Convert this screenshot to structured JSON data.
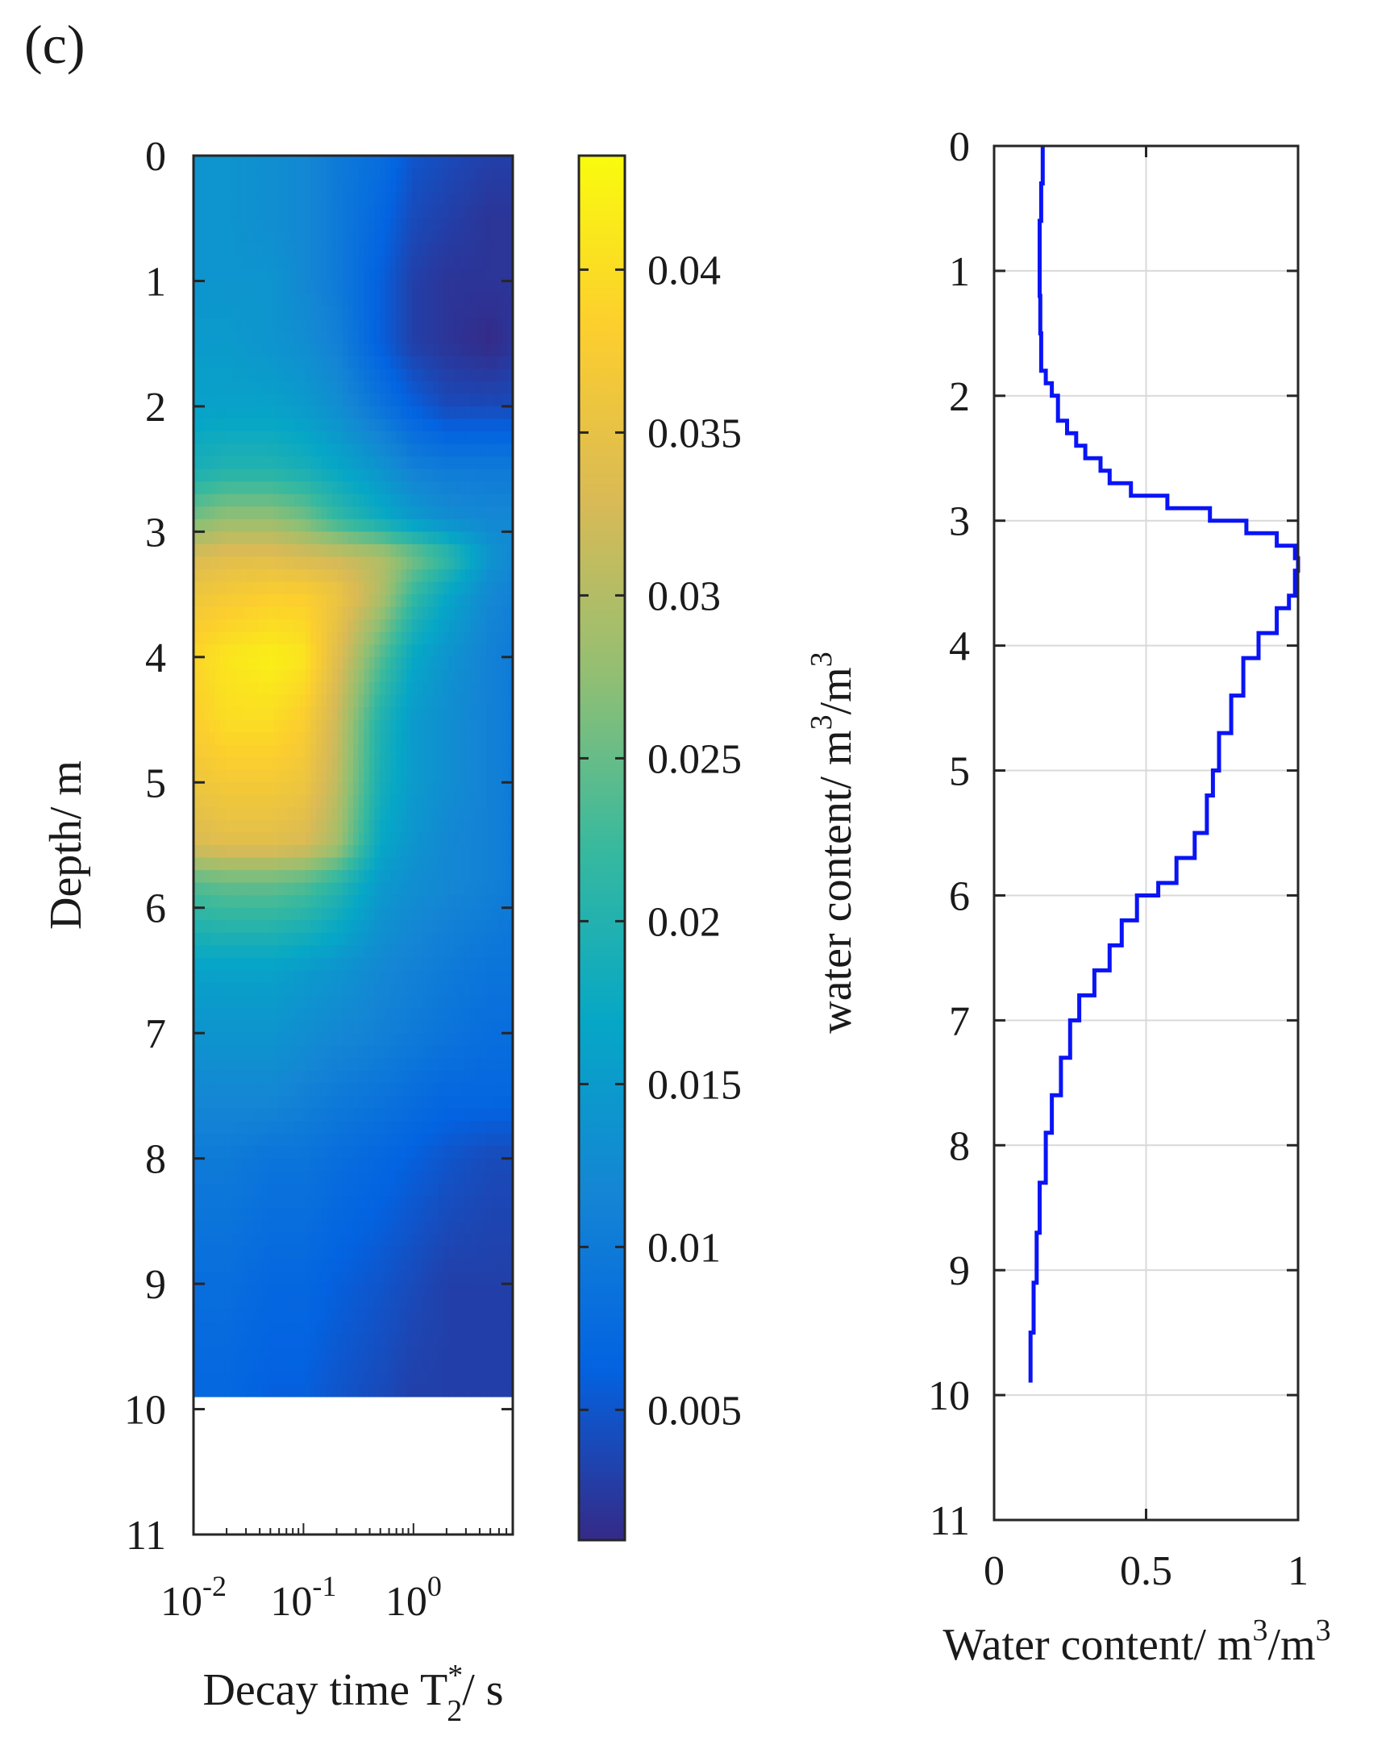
{
  "panel_label": "(c)",
  "colors": {
    "line": "#0a14f5",
    "grid": "#d9d9d9",
    "axis": "#262626",
    "parula": [
      "#352a87",
      "#0363e1",
      "#1485d4",
      "#06a7c6",
      "#38b99e",
      "#92bf73",
      "#d9ba56",
      "#fcce2e",
      "#f9fb0e"
    ]
  },
  "chart_data": [
    {
      "type": "heatmap",
      "xlabel": "Decay time T",
      "xlabel_sup": "*",
      "xlabel_sub": "2",
      "xlabel_unit": "/ s",
      "ylabel": "Depth/ m",
      "x_scale": "log",
      "x_range": [
        0.01,
        8
      ],
      "x_ticks": [
        {
          "value": 0.01,
          "base": "10",
          "exp": "-2"
        },
        {
          "value": 0.1,
          "base": "10",
          "exp": "-1"
        },
        {
          "value": 1,
          "base": "10",
          "exp": "0"
        }
      ],
      "ylim": [
        0,
        11
      ],
      "y_reversed": true,
      "y_ticks": [
        0,
        1,
        2,
        3,
        4,
        5,
        6,
        7,
        8,
        9,
        10,
        11
      ],
      "data_depth_max": 9.9,
      "columns": [
        0.01,
        0.02,
        0.05,
        0.1,
        0.2,
        0.5,
        1,
        2,
        5,
        8
      ],
      "rows": [
        {
          "depth": 0,
          "values": [
            0.014,
            0.014,
            0.013,
            0.012,
            0.01,
            0.008,
            0.005,
            0.004,
            0.003,
            0.003
          ]
        },
        {
          "depth": 0.5,
          "values": [
            0.014,
            0.014,
            0.013,
            0.012,
            0.01,
            0.007,
            0.004,
            0.003,
            0.002,
            0.002
          ]
        },
        {
          "depth": 1,
          "values": [
            0.014,
            0.014,
            0.014,
            0.012,
            0.01,
            0.006,
            0.003,
            0.002,
            0.002,
            0.002
          ]
        },
        {
          "depth": 1.5,
          "values": [
            0.015,
            0.015,
            0.014,
            0.013,
            0.011,
            0.006,
            0.003,
            0.002,
            0.001,
            0.002
          ]
        },
        {
          "depth": 2,
          "values": [
            0.016,
            0.016,
            0.016,
            0.015,
            0.013,
            0.009,
            0.006,
            0.004,
            0.004,
            0.004
          ]
        },
        {
          "depth": 2.5,
          "values": [
            0.019,
            0.02,
            0.02,
            0.019,
            0.017,
            0.014,
            0.011,
            0.01,
            0.01,
            0.01
          ]
        },
        {
          "depth": 2.9,
          "values": [
            0.026,
            0.028,
            0.028,
            0.026,
            0.022,
            0.018,
            0.015,
            0.013,
            0.012,
            0.012
          ]
        },
        {
          "depth": 3.2,
          "values": [
            0.033,
            0.034,
            0.034,
            0.033,
            0.032,
            0.03,
            0.026,
            0.022,
            0.014,
            0.012
          ]
        },
        {
          "depth": 3.5,
          "values": [
            0.036,
            0.037,
            0.038,
            0.038,
            0.036,
            0.03,
            0.022,
            0.017,
            0.012,
            0.011
          ]
        },
        {
          "depth": 4,
          "values": [
            0.039,
            0.041,
            0.042,
            0.041,
            0.034,
            0.024,
            0.017,
            0.014,
            0.011,
            0.01
          ]
        },
        {
          "depth": 4.5,
          "values": [
            0.038,
            0.04,
            0.04,
            0.038,
            0.032,
            0.02,
            0.015,
            0.013,
            0.011,
            0.01
          ]
        },
        {
          "depth": 5,
          "values": [
            0.036,
            0.037,
            0.037,
            0.036,
            0.031,
            0.019,
            0.015,
            0.013,
            0.011,
            0.01
          ]
        },
        {
          "depth": 5.5,
          "values": [
            0.033,
            0.034,
            0.034,
            0.033,
            0.029,
            0.017,
            0.014,
            0.012,
            0.011,
            0.01
          ]
        },
        {
          "depth": 5.8,
          "values": [
            0.024,
            0.025,
            0.025,
            0.024,
            0.021,
            0.015,
            0.013,
            0.012,
            0.011,
            0.01
          ]
        },
        {
          "depth": 6.5,
          "values": [
            0.016,
            0.016,
            0.016,
            0.015,
            0.014,
            0.012,
            0.011,
            0.01,
            0.009,
            0.009
          ]
        },
        {
          "depth": 7,
          "values": [
            0.014,
            0.014,
            0.014,
            0.013,
            0.012,
            0.011,
            0.01,
            0.009,
            0.008,
            0.008
          ]
        },
        {
          "depth": 7.5,
          "values": [
            0.012,
            0.012,
            0.012,
            0.011,
            0.01,
            0.009,
            0.008,
            0.007,
            0.007,
            0.007
          ]
        },
        {
          "depth": 8,
          "values": [
            0.01,
            0.01,
            0.009,
            0.009,
            0.008,
            0.007,
            0.006,
            0.005,
            0.004,
            0.004
          ]
        },
        {
          "depth": 9,
          "values": [
            0.008,
            0.008,
            0.007,
            0.007,
            0.006,
            0.005,
            0.004,
            0.003,
            0.003,
            0.003
          ]
        },
        {
          "depth": 9.9,
          "values": [
            0.007,
            0.007,
            0.006,
            0.006,
            0.005,
            0.004,
            0.003,
            0.003,
            0.003,
            0.003
          ]
        }
      ],
      "colorbar": {
        "label": "water content/ m",
        "label_sup": "3",
        "label_mid": "/m",
        "label_sup2": "3",
        "range": [
          0.001,
          0.0435
        ],
        "ticks": [
          "0.005",
          "0.01",
          "0.015",
          "0.02",
          "0.025",
          "0.03",
          "0.035",
          "0.04"
        ]
      }
    },
    {
      "type": "line",
      "xlabel": "Water content/ m",
      "xlabel_sup": "3",
      "xlabel_mid": "/m",
      "xlabel_sup2": "3",
      "xlim": [
        0,
        1
      ],
      "x_ticks": [
        "0",
        "0.5",
        "1"
      ],
      "ylim": [
        0,
        11
      ],
      "y_reversed": true,
      "y_ticks": [
        0,
        1,
        2,
        3,
        4,
        5,
        6,
        7,
        8,
        9,
        10,
        11
      ],
      "grid": true,
      "step": 0.1,
      "points": [
        [
          0.16,
          0.0
        ],
        [
          0.155,
          0.3
        ],
        [
          0.15,
          0.6
        ],
        [
          0.15,
          0.9
        ],
        [
          0.152,
          1.2
        ],
        [
          0.155,
          1.5
        ],
        [
          0.17,
          1.8
        ],
        [
          0.19,
          1.9
        ],
        [
          0.21,
          2.0
        ],
        [
          0.24,
          2.2
        ],
        [
          0.27,
          2.3
        ],
        [
          0.3,
          2.4
        ],
        [
          0.35,
          2.5
        ],
        [
          0.38,
          2.6
        ],
        [
          0.45,
          2.7
        ],
        [
          0.57,
          2.8
        ],
        [
          0.71,
          2.9
        ],
        [
          0.83,
          3.0
        ],
        [
          0.93,
          3.1
        ],
        [
          0.99,
          3.2
        ],
        [
          1.0,
          3.3
        ],
        [
          0.99,
          3.4
        ],
        [
          0.97,
          3.6
        ],
        [
          0.93,
          3.7
        ],
        [
          0.87,
          3.9
        ],
        [
          0.82,
          4.1
        ],
        [
          0.78,
          4.4
        ],
        [
          0.74,
          4.7
        ],
        [
          0.72,
          5.0
        ],
        [
          0.7,
          5.2
        ],
        [
          0.66,
          5.5
        ],
        [
          0.6,
          5.7
        ],
        [
          0.54,
          5.9
        ],
        [
          0.47,
          6.0
        ],
        [
          0.42,
          6.2
        ],
        [
          0.38,
          6.4
        ],
        [
          0.33,
          6.6
        ],
        [
          0.28,
          6.8
        ],
        [
          0.25,
          7.0
        ],
        [
          0.22,
          7.3
        ],
        [
          0.19,
          7.6
        ],
        [
          0.17,
          7.9
        ],
        [
          0.15,
          8.3
        ],
        [
          0.14,
          8.7
        ],
        [
          0.13,
          9.1
        ],
        [
          0.12,
          9.5
        ],
        [
          0.12,
          9.9
        ]
      ]
    }
  ]
}
